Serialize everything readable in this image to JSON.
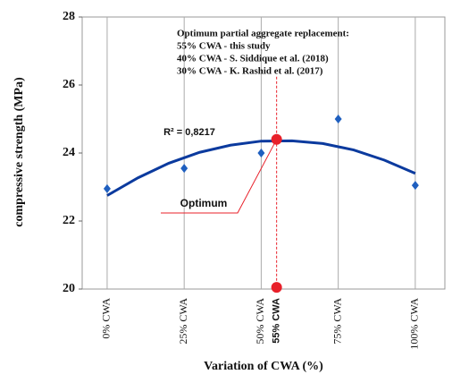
{
  "chart_data": {
    "type": "scatter",
    "ylabel": "compressive strength (MPa)",
    "xlabel": "Variation of CWA (%)",
    "ylim": [
      20,
      28
    ],
    "yticks": [
      20,
      22,
      24,
      26,
      28
    ],
    "xlim": [
      -8.1,
      109.6
    ],
    "xticks": [
      {
        "value": 0,
        "label": "0% CWA"
      },
      {
        "value": 25,
        "label": "25% CWA"
      },
      {
        "value": 50,
        "label": "50% CWA"
      },
      {
        "value": 75,
        "label": "75% CWA"
      },
      {
        "value": 100,
        "label": "100% CWA"
      }
    ],
    "grid": true,
    "series": [
      {
        "color": "#1f5fbf",
        "x": [
          0,
          25,
          50,
          75,
          100
        ],
        "values": [
          22.95,
          23.55,
          24.0,
          25.0,
          23.05
        ]
      }
    ],
    "trend": {
      "color": "#0b3a9e",
      "x": [
        0,
        10,
        20,
        30,
        40,
        50,
        60,
        70,
        80,
        90,
        100
      ],
      "values": [
        22.75,
        23.27,
        23.7,
        24.02,
        24.23,
        24.35,
        24.36,
        24.28,
        24.09,
        23.79,
        23.4
      ],
      "label": "R² = 0,8217"
    },
    "optimum": {
      "color": "#e8202a",
      "x": 55,
      "values": [
        24.4,
        20.05
      ],
      "label": "Optimum",
      "tick_label": "55% CWA"
    },
    "annotation": [
      "Optimum  partial aggregate replacement:",
      "55% CWA - this study",
      "40% CWA - S. Siddique et al. (2018)",
      "30% CWA - K. Rashid et al. (2017)"
    ]
  }
}
